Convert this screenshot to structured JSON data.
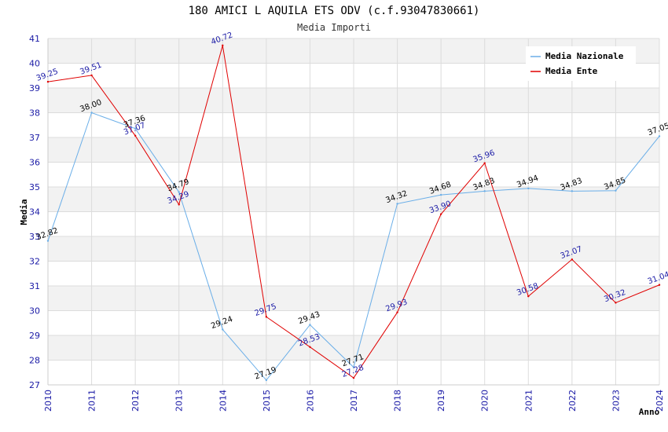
{
  "chart_data": {
    "type": "line",
    "title": "180 AMICI L AQUILA ETS ODV (c.f.93047830661)",
    "subtitle": "Media Importi",
    "xlabel": "Anno",
    "ylabel": "Media",
    "ylim": [
      27,
      41
    ],
    "yticks": [
      27,
      28,
      29,
      30,
      31,
      32,
      33,
      34,
      35,
      36,
      37,
      38,
      39,
      40,
      41
    ],
    "categories": [
      "2010",
      "2011",
      "2012",
      "2013",
      "2014",
      "2015",
      "2016",
      "2017",
      "2018",
      "2019",
      "2020",
      "2021",
      "2022",
      "2023",
      "2024"
    ],
    "grid": true,
    "legend_position": "top-right",
    "series": [
      {
        "name": "Media Nazionale",
        "color": "#6aaee8",
        "values": [
          32.82,
          38.0,
          37.36,
          34.79,
          29.24,
          27.19,
          29.43,
          27.71,
          34.32,
          34.68,
          34.83,
          34.94,
          34.83,
          34.85,
          37.05
        ],
        "labels": [
          "32.82",
          "38.00",
          "37.36",
          "34.79",
          "29.24",
          "27.19",
          "29.43",
          "27.71",
          "34.32",
          "34.68",
          "34.83",
          "34.94",
          "34.83",
          "34.85",
          "37.05"
        ]
      },
      {
        "name": "Media Ente",
        "color": "#e00000",
        "values": [
          39.25,
          39.51,
          37.07,
          34.29,
          40.72,
          29.75,
          28.53,
          27.28,
          29.93,
          33.9,
          35.96,
          30.58,
          32.07,
          30.32,
          31.04
        ],
        "labels": [
          "39.25",
          "39.51",
          "37.07",
          "34.29",
          "40.72",
          "29.75",
          "28.53",
          "27.28",
          "29.93",
          "33.90",
          "35.96",
          "30.58",
          "32.07",
          "30.32",
          "31.04"
        ]
      }
    ]
  }
}
